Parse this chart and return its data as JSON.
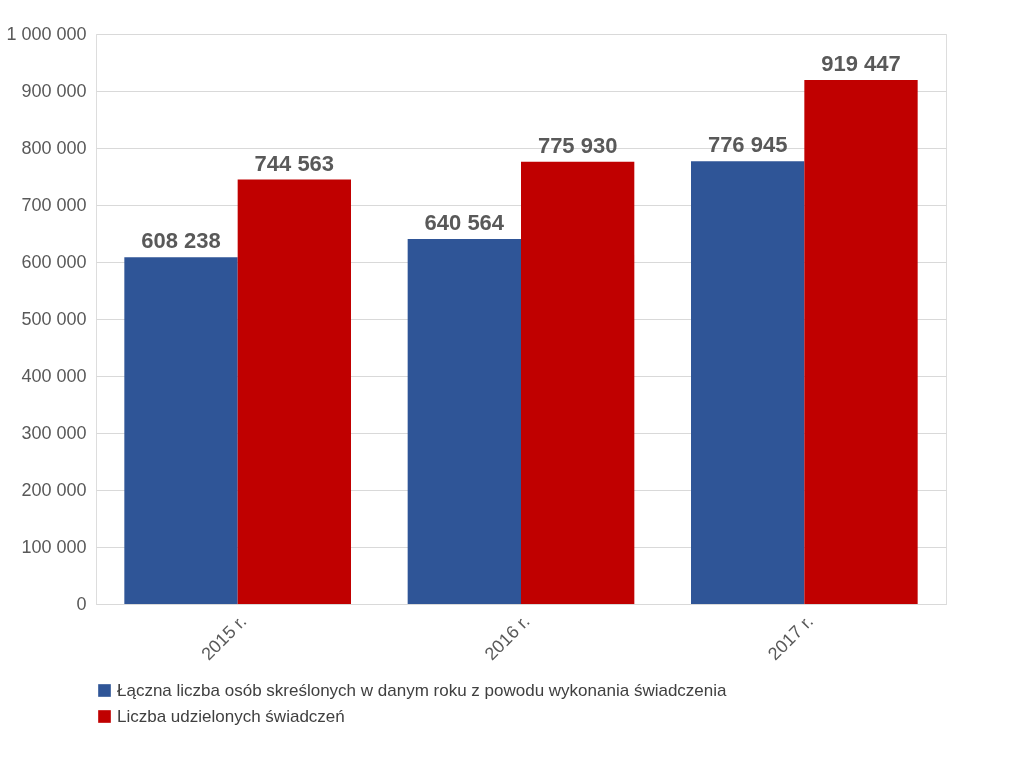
{
  "chart_data": {
    "type": "bar",
    "categories": [
      "2015 r.",
      "2016 r.",
      "2017 r."
    ],
    "series": [
      {
        "name": "Łączna liczba osób skreślonych w danym roku z powodu wykonania świadczenia",
        "color": "#2f5597",
        "values": [
          608238,
          640564,
          776945
        ],
        "value_labels": [
          "608 238",
          "640 564",
          "776 945"
        ]
      },
      {
        "name": "Liczba udzielonych świadczeń",
        "color": "#c00000",
        "values": [
          744563,
          775930,
          919447
        ],
        "value_labels": [
          "744 563",
          "775 930",
          "919 447"
        ]
      }
    ],
    "ylim": [
      0,
      1000000
    ],
    "yticks": [
      0,
      {
        "value": 100000,
        "label": "100 000"
      },
      {
        "value": 200000,
        "label": "200 000"
      },
      {
        "value": 300000,
        "label": "300 000"
      },
      {
        "value": 400000,
        "label": "400 000"
      },
      {
        "value": 500000,
        "label": "500 000"
      },
      {
        "value": 600000,
        "label": "600 000"
      },
      {
        "value": 700000,
        "label": "700 000"
      },
      {
        "value": 800000,
        "label": "800 000"
      },
      {
        "value": 900000,
        "label": "900 000"
      },
      {
        "value": 1000000,
        "label": "1 000 000"
      }
    ],
    "grid": "y",
    "legend": "bottom"
  }
}
